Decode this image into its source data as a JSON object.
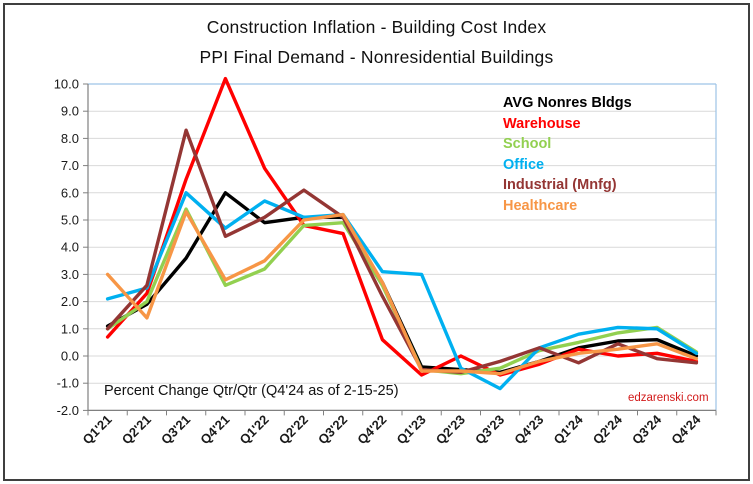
{
  "title": {
    "line1": "Construction Inflation - Building Cost Index",
    "line2": "PPI Final Demand - Nonresidential Buildings"
  },
  "annotation": "Percent Change Qtr/Qtr  (Q4'24 as of 2-15-25)",
  "watermark": "edzarenski.com",
  "colors": {
    "grid": "#d9d9d9",
    "plot_border": "#9dc3e6",
    "axis": "#808080",
    "tick_label": "#1a1a1a",
    "watermark_red": "#d21a1a"
  },
  "chart_data": {
    "type": "line",
    "categories": [
      "Q1'21",
      "Q2'21",
      "Q3'21",
      "Q4'21",
      "Q1'22",
      "Q2'22",
      "Q3'22",
      "Q4'22",
      "Q1'23",
      "Q2'23",
      "Q3'23",
      "Q4'23",
      "Q1'24",
      "Q2'24",
      "Q3'24",
      "Q4'24"
    ],
    "series": [
      {
        "name": "AVG Nonres Bldgs",
        "color": "#000000",
        "values": [
          1.1,
          1.9,
          3.6,
          6.0,
          4.9,
          5.1,
          5.1,
          2.7,
          -0.4,
          -0.5,
          -0.6,
          -0.2,
          0.3,
          0.55,
          0.6,
          0.0
        ]
      },
      {
        "name": "Warehouse",
        "color": "#ff0000",
        "values": [
          0.7,
          2.3,
          6.5,
          10.2,
          6.9,
          4.8,
          4.5,
          0.6,
          -0.7,
          0.0,
          -0.7,
          -0.3,
          0.25,
          0.0,
          0.1,
          -0.2
        ]
      },
      {
        "name": "School",
        "color": "#92d050",
        "values": [
          1.0,
          2.0,
          5.4,
          2.6,
          3.2,
          4.8,
          4.9,
          2.6,
          -0.5,
          -0.65,
          -0.45,
          0.2,
          0.5,
          0.85,
          1.05,
          0.15
        ]
      },
      {
        "name": "Office",
        "color": "#00b0f0",
        "values": [
          2.1,
          2.5,
          6.0,
          4.7,
          5.7,
          5.1,
          5.2,
          3.1,
          3.0,
          -0.45,
          -1.2,
          0.3,
          0.8,
          1.05,
          1.0,
          0.1
        ]
      },
      {
        "name": "Industrial (Mnfg)",
        "color": "#943634",
        "values": [
          1.0,
          2.6,
          8.3,
          4.4,
          5.1,
          6.1,
          5.1,
          2.2,
          -0.5,
          -0.6,
          -0.2,
          0.3,
          -0.25,
          0.45,
          -0.1,
          -0.25
        ]
      },
      {
        "name": "Healthcare",
        "color": "#f79646",
        "values": [
          3.0,
          1.4,
          5.3,
          2.8,
          3.5,
          5.0,
          5.2,
          2.7,
          -0.55,
          -0.55,
          -0.65,
          -0.2,
          0.1,
          0.25,
          0.45,
          -0.1
        ]
      }
    ],
    "ylim": [
      -2.0,
      10.0
    ],
    "ytick_step": 1.0,
    "ytick_format_decimals": 1,
    "grid": true,
    "legend_position": "top-right-inside"
  }
}
